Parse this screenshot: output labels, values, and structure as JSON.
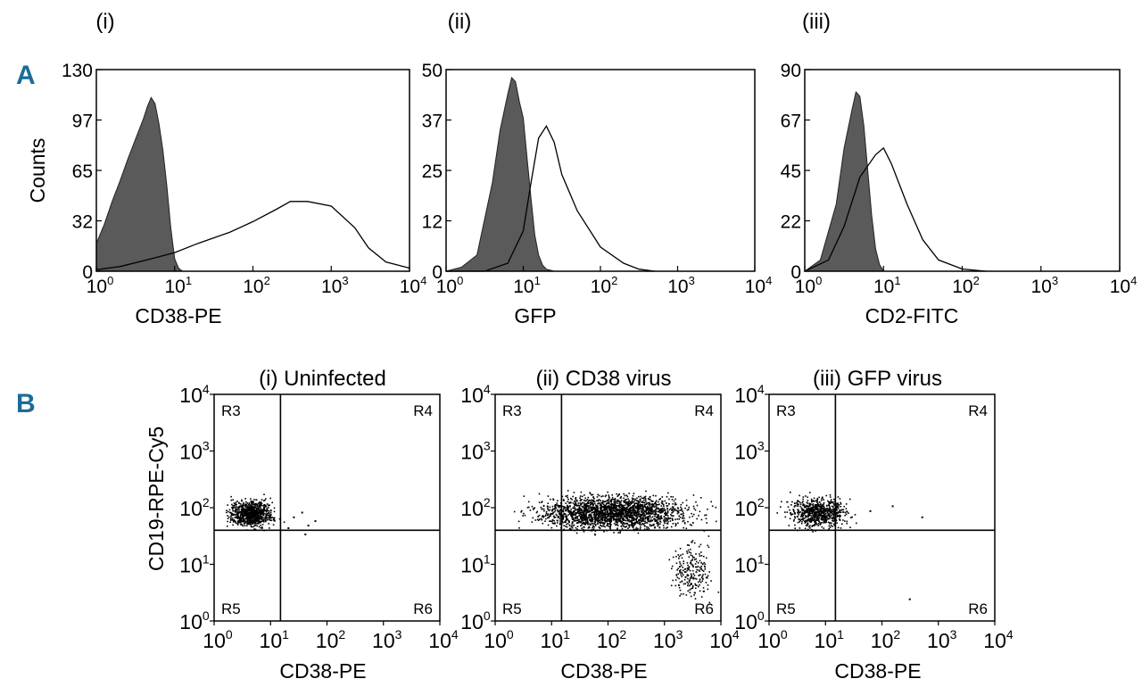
{
  "figure": {
    "panel_a_letter": "A",
    "panel_b_letter": "B",
    "panel_color": "#1b6c97"
  },
  "chart_data": [
    {
      "type": "area",
      "id": "A-i",
      "label": "(i)",
      "xlabel": "CD38-PE",
      "ylabel": "Counts",
      "xscale": "log",
      "xlim": [
        1,
        10000
      ],
      "ylim": [
        0,
        130
      ],
      "y_ticks": [
        "0",
        "32",
        "65",
        "97",
        "130"
      ],
      "x_ticks": [
        {
          "base": "10",
          "exp": "0"
        },
        {
          "base": "10",
          "exp": "1"
        },
        {
          "base": "10",
          "exp": "2"
        },
        {
          "base": "10",
          "exp": "3"
        },
        {
          "base": "10",
          "exp": "4"
        }
      ],
      "series": [
        {
          "style": "filled",
          "fill": "#5a5a5a",
          "x": [
            1,
            1.26,
            1.59,
            2,
            2.51,
            3.16,
            3.98,
            4.47,
            5.01,
            5.62,
            6.31,
            7.08,
            7.94,
            8.91,
            10,
            11.2,
            12.6
          ],
          "y": [
            18,
            30,
            45,
            58,
            72,
            85,
            98,
            106,
            112,
            108,
            95,
            78,
            55,
            28,
            8,
            2,
            0
          ]
        },
        {
          "style": "line",
          "stroke": "#000000",
          "x": [
            1,
            2,
            5,
            10,
            20,
            50,
            100,
            200,
            300,
            500,
            1000,
            2000,
            3000,
            5000,
            10000
          ],
          "y": [
            1,
            3,
            8,
            12,
            18,
            25,
            32,
            40,
            45,
            45,
            42,
            28,
            15,
            6,
            2
          ]
        }
      ]
    },
    {
      "type": "area",
      "id": "A-ii",
      "label": "(ii)",
      "xlabel": "GFP",
      "ylabel": "",
      "xscale": "log",
      "xlim": [
        1,
        10000
      ],
      "ylim": [
        0,
        50
      ],
      "y_ticks": [
        "0",
        "12",
        "25",
        "37",
        "50"
      ],
      "x_ticks": [
        {
          "base": "10",
          "exp": "0"
        },
        {
          "base": "10",
          "exp": "1"
        },
        {
          "base": "10",
          "exp": "2"
        },
        {
          "base": "10",
          "exp": "3"
        },
        {
          "base": "10",
          "exp": "4"
        }
      ],
      "series": [
        {
          "style": "filled",
          "fill": "#5a5a5a",
          "x": [
            1,
            1.58,
            2.51,
            3.98,
            5.01,
            6.31,
            7.08,
            7.94,
            8.91,
            10,
            11.2,
            12.6,
            14.1,
            15.8,
            17.8,
            20,
            25.1,
            31.6
          ],
          "y": [
            0,
            1,
            4,
            22,
            35,
            44,
            48,
            47,
            42,
            38,
            28,
            18,
            9,
            4,
            1.5,
            0.5,
            0,
            0
          ]
        },
        {
          "style": "line",
          "stroke": "#000000",
          "x": [
            1,
            3.16,
            6.31,
            10,
            12.6,
            15.8,
            19.9,
            25.1,
            31.6,
            50.1,
            100,
            199.5,
            316.2,
            501.2
          ],
          "y": [
            0,
            0,
            2,
            10,
            22,
            33,
            36,
            32,
            24,
            15,
            6,
            2,
            0.5,
            0
          ]
        }
      ]
    },
    {
      "type": "area",
      "id": "A-iii",
      "label": "(iii)",
      "xlabel": "CD2-FITC",
      "ylabel": "",
      "xscale": "log",
      "xlim": [
        1,
        10000
      ],
      "ylim": [
        0,
        90
      ],
      "y_ticks": [
        "0",
        "22",
        "45",
        "67",
        "90"
      ],
      "x_ticks": [
        {
          "base": "10",
          "exp": "0"
        },
        {
          "base": "10",
          "exp": "1"
        },
        {
          "base": "10",
          "exp": "2"
        },
        {
          "base": "10",
          "exp": "3"
        },
        {
          "base": "10",
          "exp": "4"
        }
      ],
      "series": [
        {
          "style": "filled",
          "fill": "#5a5a5a",
          "x": [
            1,
            1.58,
            2.51,
            3.16,
            3.98,
            4.47,
            5.01,
            5.62,
            6.31,
            7.08,
            7.94,
            8.91,
            10,
            12.6
          ],
          "y": [
            0,
            5,
            30,
            55,
            72,
            80,
            78,
            65,
            45,
            25,
            10,
            3,
            0,
            0
          ]
        },
        {
          "style": "line",
          "stroke": "#000000",
          "x": [
            1,
            2,
            3.16,
            5.01,
            7.94,
            10,
            12.6,
            19.9,
            31.6,
            50.1,
            100,
            199.5
          ],
          "y": [
            0,
            5,
            20,
            42,
            52,
            55,
            48,
            30,
            14,
            5,
            1,
            0
          ]
        }
      ]
    },
    {
      "type": "scatter",
      "id": "B-i",
      "title": "(i) Uninfected",
      "xlabel": "CD38-PE",
      "ylabel": "CD19-RPE-Cy5",
      "xscale": "log",
      "yscale": "log",
      "xlim": [
        1,
        10000
      ],
      "ylim": [
        1,
        10000
      ],
      "x_gate": 15,
      "y_gate": 40,
      "regions": {
        "upper_left": "R3",
        "upper_right": "R4",
        "lower_left": "R5",
        "lower_right": "R6"
      },
      "x_ticks": [
        {
          "base": "10",
          "exp": "0"
        },
        {
          "base": "10",
          "exp": "1"
        },
        {
          "base": "10",
          "exp": "2"
        },
        {
          "base": "10",
          "exp": "3"
        },
        {
          "base": "10",
          "exp": "4"
        }
      ],
      "y_ticks": [
        {
          "base": "10",
          "exp": "0"
        },
        {
          "base": "10",
          "exp": "1"
        },
        {
          "base": "10",
          "exp": "2"
        },
        {
          "base": "10",
          "exp": "3"
        },
        {
          "base": "10",
          "exp": "4"
        }
      ],
      "clusters": [
        {
          "n": 900,
          "log_x": [
            0.1,
            1.2
          ],
          "log_y": [
            1.55,
            2.25
          ]
        }
      ],
      "extra_points": [
        {
          "x": 25,
          "y": 70
        },
        {
          "x": 35,
          "y": 85
        },
        {
          "x": 45,
          "y": 50
        },
        {
          "x": 60,
          "y": 60
        },
        {
          "x": 20,
          "y": 45
        },
        {
          "x": 40,
          "y": 35
        }
      ]
    },
    {
      "type": "scatter",
      "id": "B-ii",
      "title": "(ii) CD38 virus",
      "xlabel": "CD38-PE",
      "ylabel": "",
      "xscale": "log",
      "yscale": "log",
      "xlim": [
        1,
        10000
      ],
      "ylim": [
        1,
        10000
      ],
      "x_gate": 15,
      "y_gate": 40,
      "regions": {
        "upper_left": "R3",
        "upper_right": "R4",
        "lower_left": "R5",
        "lower_right": "R6"
      },
      "x_ticks": [
        {
          "base": "10",
          "exp": "0"
        },
        {
          "base": "10",
          "exp": "1"
        },
        {
          "base": "10",
          "exp": "2"
        },
        {
          "base": "10",
          "exp": "3"
        },
        {
          "base": "10",
          "exp": "4"
        }
      ],
      "y_ticks": [
        {
          "base": "10",
          "exp": "0"
        },
        {
          "base": "10",
          "exp": "1"
        },
        {
          "base": "10",
          "exp": "2"
        },
        {
          "base": "10",
          "exp": "3"
        },
        {
          "base": "10",
          "exp": "4"
        }
      ],
      "clusters": [
        {
          "n": 2200,
          "log_x": [
            0.1,
            4.0
          ],
          "log_y": [
            1.5,
            2.35
          ]
        },
        {
          "n": 220,
          "log_x": [
            2.95,
            4.0
          ],
          "log_y": [
            0.2,
            1.6
          ]
        }
      ],
      "extra_points": []
    },
    {
      "type": "scatter",
      "id": "B-iii",
      "title": "(iii) GFP virus",
      "xlabel": "CD38-PE",
      "ylabel": "",
      "xscale": "log",
      "yscale": "log",
      "xlim": [
        1,
        10000
      ],
      "ylim": [
        1,
        10000
      ],
      "x_gate": 15,
      "y_gate": 40,
      "regions": {
        "upper_left": "R3",
        "upper_right": "R4",
        "lower_left": "R5",
        "lower_right": "R6"
      },
      "x_ticks": [
        {
          "base": "10",
          "exp": "0"
        },
        {
          "base": "10",
          "exp": "1"
        },
        {
          "base": "10",
          "exp": "2"
        },
        {
          "base": "10",
          "exp": "3"
        },
        {
          "base": "10",
          "exp": "4"
        }
      ],
      "y_ticks": [
        {
          "base": "10",
          "exp": "0"
        },
        {
          "base": "10",
          "exp": "1"
        },
        {
          "base": "10",
          "exp": "2"
        },
        {
          "base": "10",
          "exp": "3"
        },
        {
          "base": "10",
          "exp": "4"
        }
      ],
      "clusters": [
        {
          "n": 750,
          "log_x": [
            0.1,
            1.6
          ],
          "log_y": [
            1.55,
            2.3
          ]
        }
      ],
      "extra_points": [
        {
          "x": 150,
          "y": 110
        },
        {
          "x": 500,
          "y": 70
        },
        {
          "x": 300,
          "y": 2.5
        },
        {
          "x": 60,
          "y": 90
        }
      ]
    }
  ]
}
